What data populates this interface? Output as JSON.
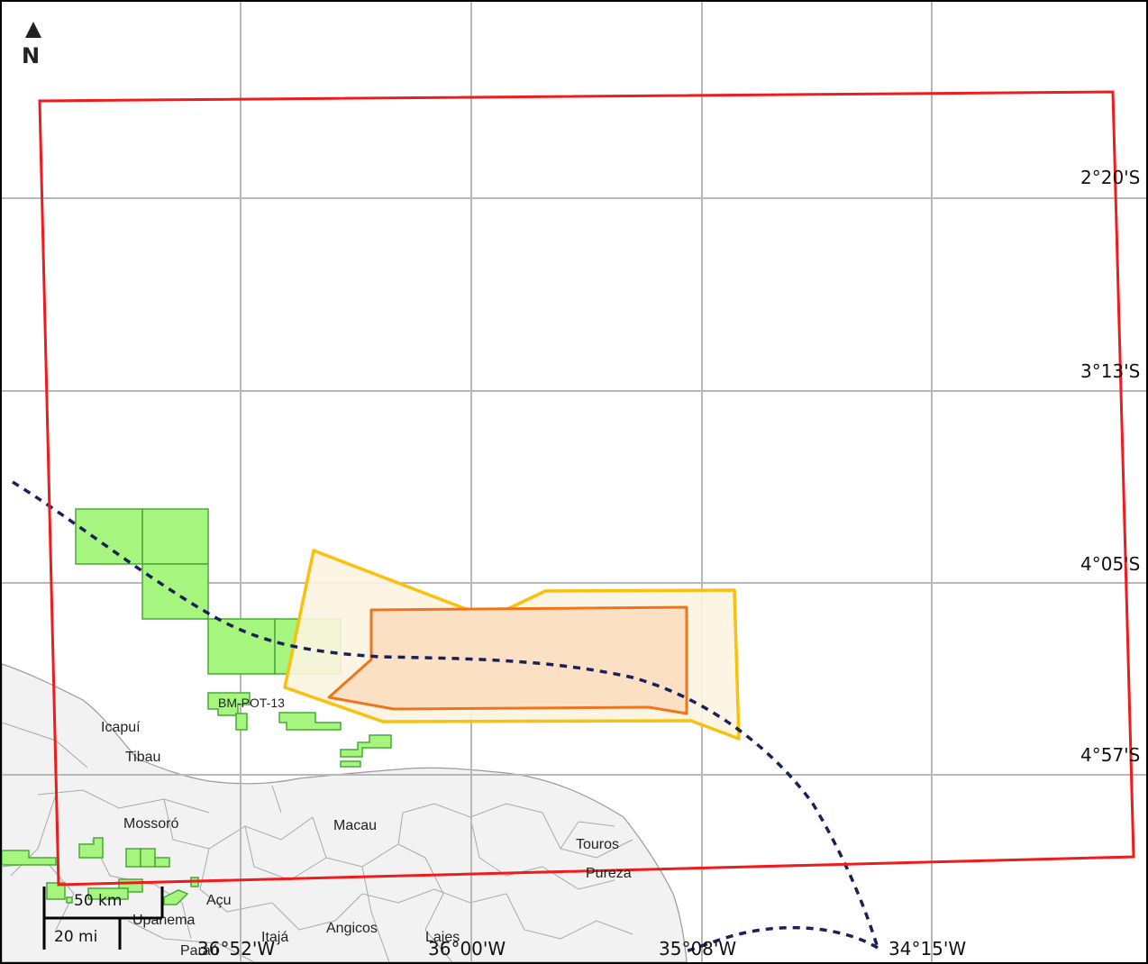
{
  "north_arrow": {
    "label": "N"
  },
  "grid": {
    "latitude_labels": [
      "2°20'S",
      "3°13'S",
      "4°05'S",
      "4°57'S"
    ],
    "longitude_labels": [
      "36°52'W",
      "36°00'W",
      "35°08'W",
      "34°15'W"
    ]
  },
  "places": [
    {
      "id": "icapui",
      "name": "Icapuí"
    },
    {
      "id": "tibau",
      "name": "Tibau"
    },
    {
      "id": "mossoro",
      "name": "Mossoró"
    },
    {
      "id": "macau",
      "name": "Macau"
    },
    {
      "id": "touros",
      "name": "Touros"
    },
    {
      "id": "pureza",
      "name": "Pureza"
    },
    {
      "id": "acu",
      "name": "Açu"
    },
    {
      "id": "upanema",
      "name": "Upanema"
    },
    {
      "id": "paraú",
      "name": "Paraú"
    },
    {
      "id": "itaja",
      "name": "Itajá"
    },
    {
      "id": "angicos",
      "name": "Angicos"
    },
    {
      "id": "lajes",
      "name": "Lajes"
    }
  ],
  "blocks": {
    "label": "BM-POT-13"
  },
  "scale_bar": {
    "metric": "50 km",
    "imperial": "20 mi"
  },
  "colors": {
    "study_area": "#ee1c1c",
    "outer_zone": "#f9c00c",
    "outer_zone_fill": "#fdf4e0",
    "inner_zone": "#f0741c",
    "inner_zone_fill": "#fbe0c4",
    "blocks_fill": "#a6f57e",
    "blocks_stroke": "#4aa83a",
    "track": "#1a2157",
    "land": "#f2f2f2",
    "land_border": "#9a9a9a",
    "grid": "#b8b8b8"
  }
}
